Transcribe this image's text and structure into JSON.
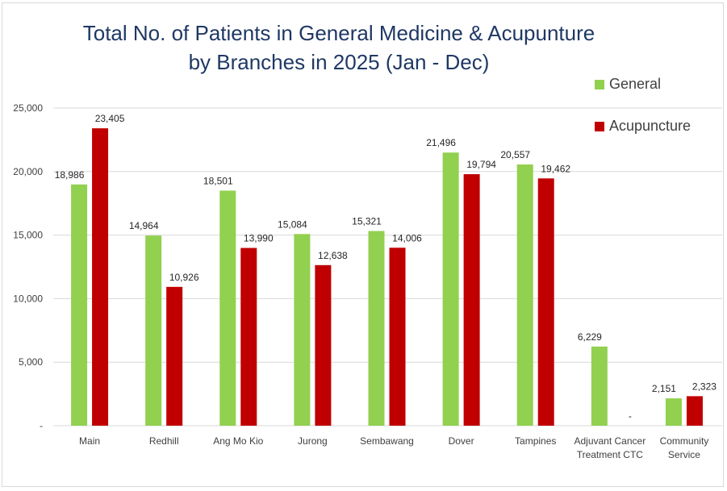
{
  "chart_data": {
    "type": "bar",
    "title": "Total No. of Patients in General Medicine & Acupunture",
    "subtitle": "by Branches in 2025 (Jan - Dec)",
    "xlabel": "",
    "ylabel": "",
    "ylim": [
      0,
      25000
    ],
    "yticks": [
      0,
      5000,
      10000,
      15000,
      20000,
      25000
    ],
    "ytick_labels": [
      "-",
      "5,000",
      "10,000",
      "15,000",
      "20,000",
      "25,000"
    ],
    "grid": true,
    "legend_position": "top-right",
    "categories": [
      [
        "Main"
      ],
      [
        "Redhill"
      ],
      [
        "Ang Mo Kio"
      ],
      [
        "Jurong"
      ],
      [
        "Sembawang"
      ],
      [
        "Dover"
      ],
      [
        "Tampines"
      ],
      [
        "Adjuvant Cancer",
        "Treatment CTC"
      ],
      [
        "Community",
        "Service"
      ]
    ],
    "series": [
      {
        "name": "General",
        "color": "#92d050",
        "values": [
          18986,
          14964,
          18501,
          15084,
          15321,
          21496,
          20557,
          6229,
          2151
        ],
        "labels": [
          "18,986",
          "14,964",
          "18,501",
          "15,084",
          "15,321",
          "21,496",
          "20,557",
          "6,229",
          "2,151"
        ]
      },
      {
        "name": "Acupuncture",
        "color": "#c00000",
        "values": [
          23405,
          10926,
          13990,
          12638,
          14006,
          19794,
          19462,
          0,
          2323
        ],
        "labels": [
          "23,405",
          "10,926",
          "13,990",
          "12,638",
          "14,006",
          "19,794",
          "19,462",
          "-",
          "2,323"
        ]
      }
    ]
  }
}
